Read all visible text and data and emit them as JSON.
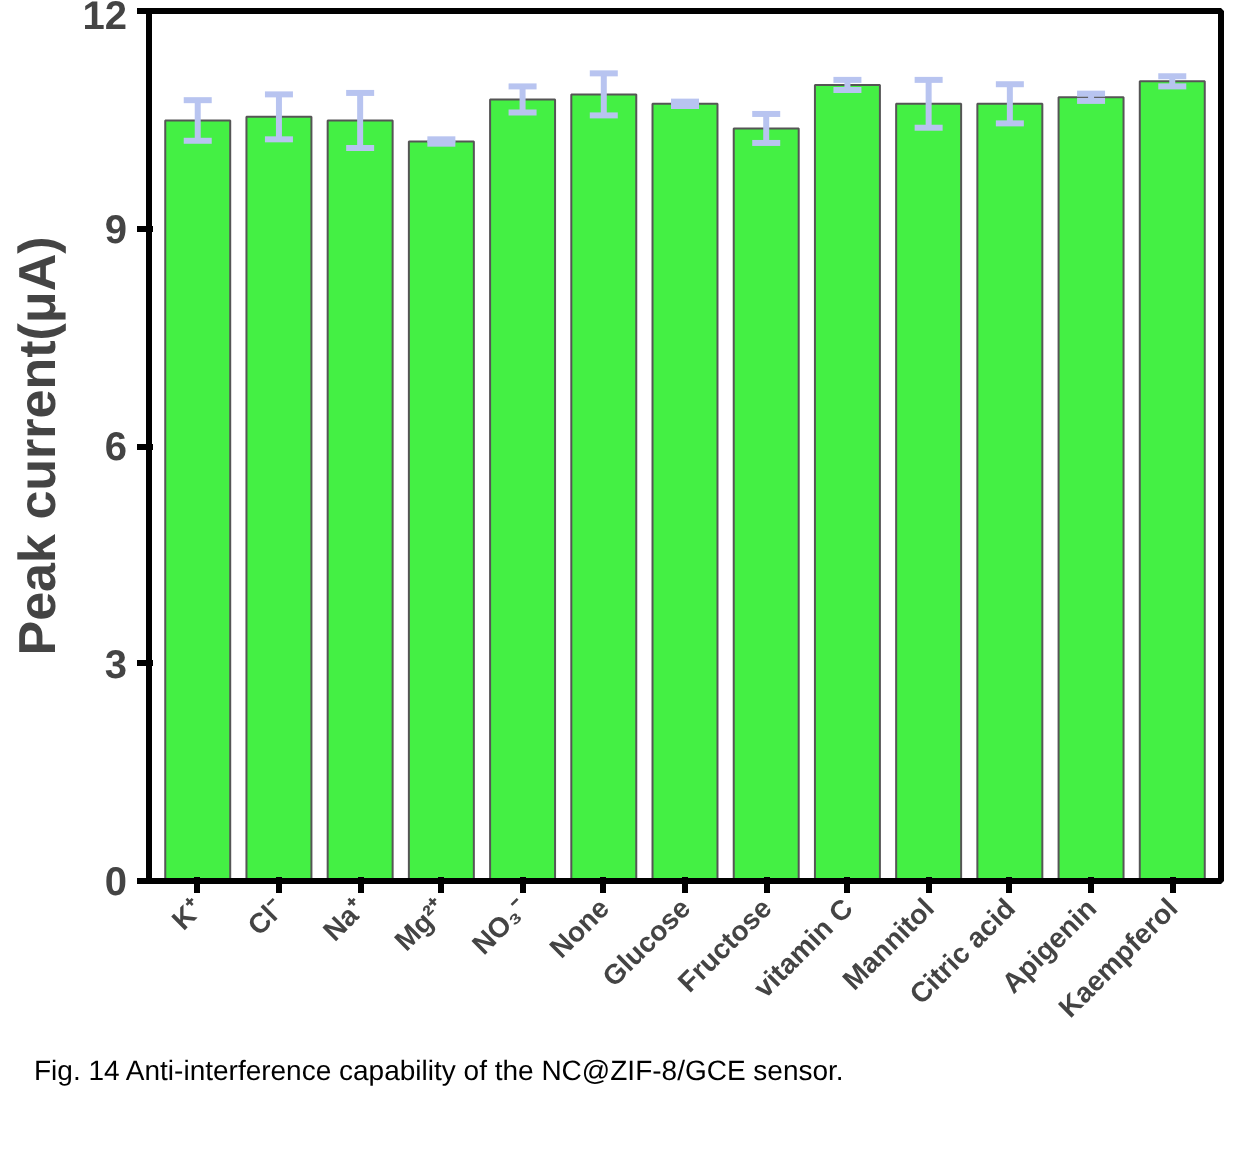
{
  "chart_data": {
    "type": "bar",
    "ylabel": "Peak current(μA)",
    "categories": [
      "K⁺",
      "Cl⁻",
      "Na⁺",
      "Mg²⁺",
      "NO₃⁻",
      "None",
      "Glucose",
      "Fructose",
      "vitamin C",
      "Mannitol",
      "Citric acid",
      "Apigenin",
      "Kaempferol"
    ],
    "values": [
      10.49,
      10.54,
      10.49,
      10.2,
      10.78,
      10.85,
      10.72,
      10.38,
      10.98,
      10.72,
      10.72,
      10.81,
      11.03
    ],
    "errors": [
      0.28,
      0.31,
      0.38,
      0.03,
      0.18,
      0.29,
      0.03,
      0.2,
      0.07,
      0.33,
      0.27,
      0.05,
      0.07
    ],
    "color": "#44f044",
    "ylim": [
      0,
      12
    ],
    "yticks": [
      0,
      3,
      6,
      9,
      12
    ],
    "grid": false,
    "annotations": [
      "Fig. 14 Anti-interference capability of the NC@ZIF-8/GCE sensor."
    ]
  }
}
